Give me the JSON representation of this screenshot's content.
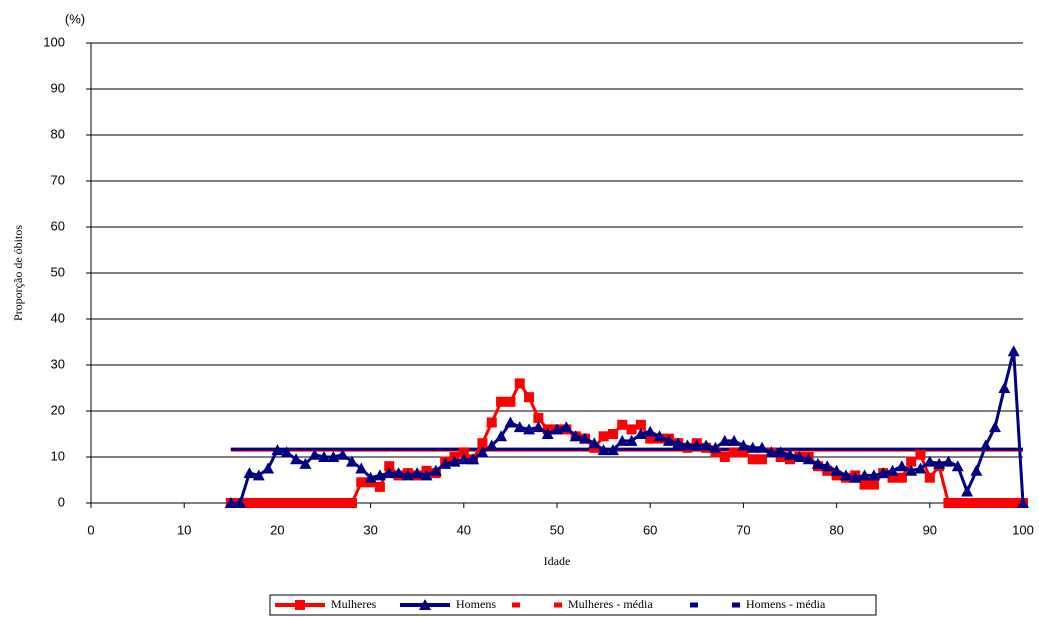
{
  "chart_data": {
    "type": "line",
    "y_unit": "(%)",
    "y_label": "Proporção de óbitos",
    "x_label": "Idade",
    "x": [
      15,
      16,
      17,
      18,
      19,
      20,
      21,
      22,
      23,
      24,
      25,
      26,
      27,
      28,
      29,
      30,
      31,
      32,
      33,
      34,
      35,
      36,
      37,
      38,
      39,
      40,
      41,
      42,
      43,
      44,
      45,
      46,
      47,
      48,
      49,
      50,
      51,
      52,
      53,
      54,
      55,
      56,
      57,
      58,
      59,
      60,
      61,
      62,
      63,
      64,
      65,
      66,
      67,
      68,
      69,
      70,
      71,
      72,
      73,
      74,
      75,
      76,
      77,
      78,
      79,
      80,
      81,
      82,
      83,
      84,
      85,
      86,
      87,
      88,
      89,
      90,
      91,
      92,
      93,
      94,
      95,
      96,
      97,
      98,
      99,
      100
    ],
    "series": [
      {
        "name": "Mulheres",
        "color": "#ff0000",
        "marker": "square",
        "values": [
          0,
          0,
          0,
          0,
          0,
          0,
          0,
          0,
          0,
          0,
          0,
          0,
          0,
          0,
          4.5,
          4.5,
          3.5,
          8,
          6,
          6.5,
          6,
          7,
          6.5,
          9,
          10,
          11,
          9.5,
          13,
          17.5,
          22,
          22,
          26,
          23,
          18.5,
          16,
          16,
          16,
          14.5,
          14,
          12,
          14.5,
          15,
          17,
          16,
          17,
          14,
          14,
          14,
          13,
          12,
          13,
          12,
          11,
          10,
          11,
          11,
          9.5,
          9.5,
          11,
          10,
          9.5,
          10,
          10,
          8,
          7,
          6,
          5.5,
          6,
          4,
          4,
          6.5,
          5.5,
          5.5,
          9,
          10.5,
          5.5,
          8,
          0,
          0,
          0,
          0,
          0,
          0,
          0,
          0,
          0
        ]
      },
      {
        "name": "Homens",
        "color": "#000080",
        "marker": "triangle",
        "values": [
          0,
          0,
          6.5,
          6,
          7.5,
          11.5,
          11,
          9.5,
          8.5,
          10.5,
          10,
          10,
          10.5,
          9,
          7.5,
          5.5,
          6,
          6.5,
          6.5,
          6,
          6.5,
          6,
          7,
          8.5,
          9,
          9.5,
          9.5,
          11,
          12.5,
          14.5,
          17.5,
          16.5,
          16,
          16.5,
          15,
          16,
          16.5,
          14.5,
          14,
          13,
          11.5,
          11.5,
          13.5,
          13.5,
          15,
          15.5,
          14.5,
          13.5,
          13,
          12.5,
          12.5,
          12.5,
          12,
          13.5,
          13.5,
          12.5,
          12,
          12,
          11,
          11,
          10.5,
          10,
          9.5,
          8.5,
          8,
          7,
          6,
          5.5,
          6,
          6,
          6.5,
          7,
          8,
          7,
          7.5,
          9,
          8.5,
          9,
          8,
          2.5,
          7,
          12.5,
          16.5,
          25,
          33,
          0
        ]
      }
    ],
    "means": [
      {
        "name": "Mulheres - média",
        "color": "#ff0000",
        "value": 11.5,
        "span": [
          15,
          100
        ]
      },
      {
        "name": "Homens - média",
        "color": "#000080",
        "value": 11.7,
        "span": [
          15,
          100
        ]
      }
    ],
    "xlim": [
      0,
      100
    ],
    "xticks": [
      0,
      10,
      20,
      30,
      40,
      50,
      60,
      70,
      80,
      90,
      100
    ],
    "ylim": [
      0,
      100
    ],
    "yticks": [
      0,
      10,
      20,
      30,
      40,
      50,
      60,
      70,
      80,
      90,
      100
    ],
    "grid": true
  }
}
